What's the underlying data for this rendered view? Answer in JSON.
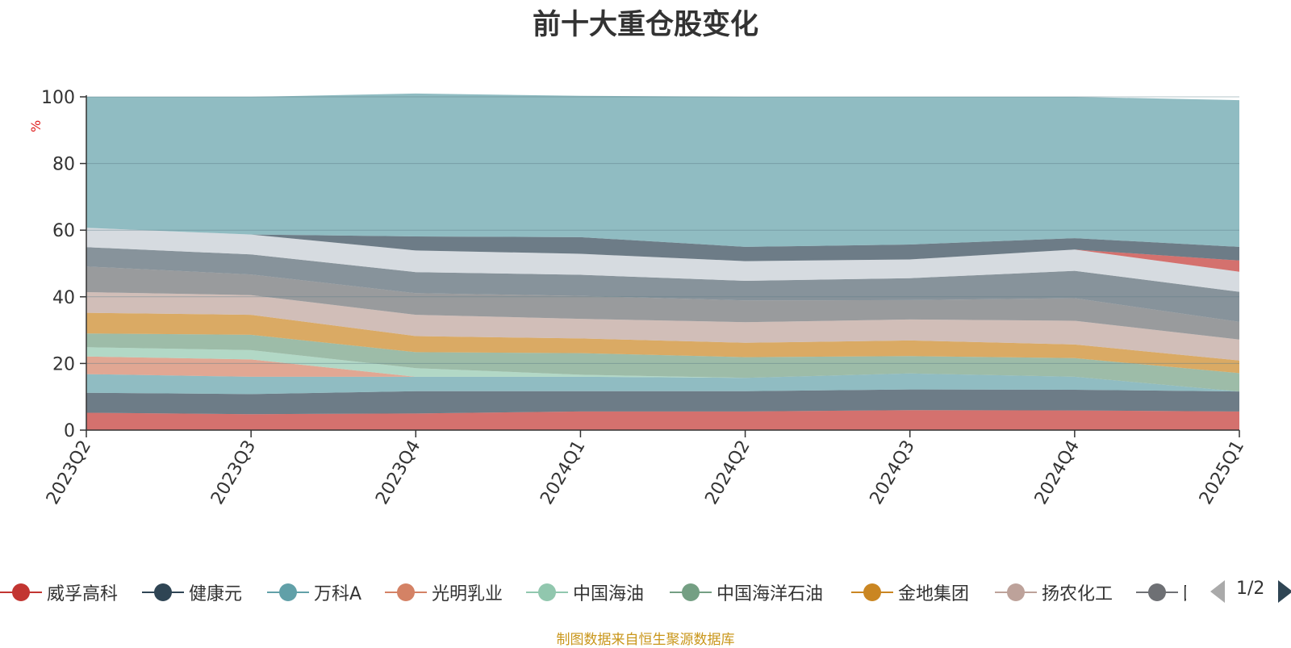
{
  "source_note": "制图数据来自恒生聚源数据库",
  "legend_page": "1/2",
  "chart_data": {
    "type": "area",
    "title": "前十大重仓股变化",
    "ylabel": "%",
    "ylim": [
      0,
      100
    ],
    "yticks": [
      0,
      20,
      40,
      60,
      80,
      100
    ],
    "categories": [
      "2023Q2",
      "2023Q3",
      "2023Q4",
      "2024Q1",
      "2024Q2",
      "2024Q3",
      "2024Q4",
      "2025Q1"
    ],
    "stacked": true,
    "grid": true,
    "legend_position": "bottom",
    "series": [
      {
        "name": "威孚高科",
        "color": "#c23531",
        "values": [
          5.2,
          4.8,
          5.0,
          5.6,
          5.6,
          6.0,
          5.9,
          5.6
        ]
      },
      {
        "name": "健康元",
        "color": "#2f4554",
        "values": [
          6.0,
          6.0,
          6.7,
          6.1,
          6.1,
          6.2,
          6.2,
          6.0
        ]
      },
      {
        "name": "万科A",
        "color": "#61a0a8",
        "values": [
          5.6,
          5.2,
          4.3,
          4.3,
          4.0,
          4.8,
          3.9,
          0
        ]
      },
      {
        "name": "光明乳业",
        "color": "#d48265",
        "values": [
          5.3,
          5.2,
          0,
          0,
          0,
          0,
          0,
          0
        ]
      },
      {
        "name": "中国海油",
        "color": "#91c7ae",
        "values": [
          2.8,
          2.8,
          2.6,
          0.6,
          0,
          0,
          0,
          0
        ]
      },
      {
        "name": "中国海洋石油",
        "color": "#749f83",
        "values": [
          4.1,
          4.6,
          4.8,
          6.5,
          6.2,
          5.2,
          5.6,
          5.5
        ]
      },
      {
        "name": "金地集团",
        "color": "#ca8622",
        "values": [
          6.2,
          6.0,
          4.8,
          4.4,
          4.3,
          4.7,
          4.1,
          3.8
        ]
      },
      {
        "name": "扬农化工",
        "color": "#bda29a",
        "values": [
          6.2,
          5.9,
          6.4,
          5.9,
          6.2,
          6.3,
          7.1,
          6.3
        ]
      },
      {
        "name": "国",
        "color": "#6e7074",
        "values": [
          7.7,
          6.2,
          6.5,
          6.9,
          6.5,
          5.8,
          6.8,
          5.3
        ]
      },
      {
        "name": "",
        "color": "#546570",
        "values": [
          5.8,
          6.0,
          6.3,
          6.3,
          5.9,
          6.6,
          8.2,
          9.0
        ]
      },
      {
        "name": "",
        "color": "#c4ccd3",
        "values": [
          5.8,
          6.0,
          6.5,
          6.3,
          5.9,
          5.6,
          6.4,
          6.0
        ]
      },
      {
        "name": "",
        "color": "#c23531",
        "values": [
          0,
          0,
          0,
          0,
          0,
          0,
          0,
          3.4
        ]
      },
      {
        "name": "",
        "color": "#2f4554",
        "values": [
          0,
          0,
          4.2,
          5.0,
          4.3,
          4.5,
          3.4,
          4.1
        ]
      },
      {
        "name": "",
        "color": "#61a0a8",
        "values": [
          39.3,
          41.3,
          42.9,
          42.4,
          45.0,
          44.3,
          42.4,
          44.0
        ]
      }
    ],
    "series_opacity": 0.7
  }
}
